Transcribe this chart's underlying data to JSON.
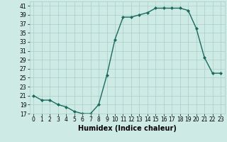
{
  "x": [
    0,
    1,
    2,
    3,
    4,
    5,
    6,
    7,
    8,
    9,
    10,
    11,
    12,
    13,
    14,
    15,
    16,
    17,
    18,
    19,
    20,
    21,
    22,
    23
  ],
  "y": [
    21,
    20,
    20,
    19,
    18.5,
    17.5,
    17,
    17,
    19,
    25.5,
    33.5,
    38.5,
    38.5,
    39,
    39.5,
    40.5,
    40.5,
    40.5,
    40.5,
    40,
    36,
    29.5,
    26,
    26
  ],
  "xlabel": "Humidex (Indice chaleur)",
  "ylim": [
    17,
    42
  ],
  "xlim": [
    -0.5,
    23.5
  ],
  "yticks": [
    17,
    19,
    21,
    23,
    25,
    27,
    29,
    31,
    33,
    35,
    37,
    39,
    41
  ],
  "xticks": [
    0,
    1,
    2,
    3,
    4,
    5,
    6,
    7,
    8,
    9,
    10,
    11,
    12,
    13,
    14,
    15,
    16,
    17,
    18,
    19,
    20,
    21,
    22,
    23
  ],
  "line_color": "#1a6b5e",
  "marker_color": "#1a6b5e",
  "bg_color": "#ceeae5",
  "grid_color": "#aaccc8",
  "marker": "D",
  "marker_size": 2.0,
  "line_width": 1.0,
  "xlabel_fontsize": 7,
  "tick_fontsize": 5.5
}
